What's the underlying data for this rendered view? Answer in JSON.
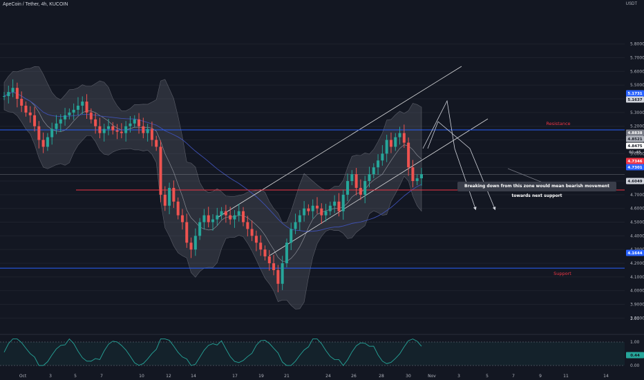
{
  "header": {
    "symbol_line": "ApeCoin / Tether, 4h, KUCOIN"
  },
  "currency": "USDT",
  "colors": {
    "background": "#131722",
    "candle_up": "#26a69a",
    "candle_down": "#ef5350",
    "level_blue": "#2962ff",
    "level_red": "#f23645",
    "bands_fill": "#787b86",
    "channel_line": "#ffffff",
    "ma_line": "#3f51b5",
    "rsi_line": "#26a69a"
  },
  "chart_data": {
    "type": "candlestick",
    "symbol": "ApeCoin / Tether",
    "timeframe": "4h",
    "exchange": "KUCOIN",
    "price_axis_ticks": [
      "5.8000",
      "5.7000",
      "5.6000",
      "5.5000",
      "5.4000",
      "5.3000",
      "5.2000",
      "5.1000",
      "5.0000",
      "4.9000",
      "4.8000",
      "4.7000",
      "4.6000",
      "4.5000",
      "4.4000",
      "4.3000",
      "4.2000",
      "4.1000",
      "4.0000",
      "3.9000",
      "3.8000"
    ],
    "oscillator_ticks": [
      "2.00",
      "1.00",
      "0.00"
    ],
    "x_ticks": [
      "Oct",
      "3",
      "5",
      "7",
      "10",
      "12",
      "14",
      "17",
      "19",
      "21",
      "24",
      "26",
      "28",
      "30",
      "Nov",
      "3",
      "5",
      "7",
      "9",
      "11",
      "14"
    ],
    "levels": [
      {
        "label": "Resistance",
        "price": 5.1731,
        "badge": "5.1731",
        "color": "#2962ff"
      },
      {
        "label": "Support",
        "price": 4.1644,
        "badge": "4.1644",
        "color": "#2962ff"
      },
      {
        "label": "",
        "price": 4.7346,
        "badge": "4.7346",
        "color": "#f23645"
      },
      {
        "label": "",
        "price": 4.7301,
        "badge": "4.7301",
        "color": "#2962ff"
      }
    ],
    "price_badges": [
      "5.1637",
      "4.8838",
      "4.8521",
      "4.8475",
      "4.6049"
    ],
    "countdown": "01:45",
    "current_price": 4.8475,
    "rsi_value": "0.44",
    "annotation": "Breaking down from this zone would mean bearish movement towards next support",
    "price_path": [
      5.42,
      5.45,
      5.48,
      5.4,
      5.35,
      5.3,
      5.28,
      5.2,
      5.1,
      5.05,
      5.12,
      5.18,
      5.22,
      5.25,
      5.28,
      5.3,
      5.32,
      5.35,
      5.38,
      5.3,
      5.25,
      5.2,
      5.15,
      5.18,
      5.2,
      5.17,
      5.16,
      5.15,
      5.2,
      5.22,
      5.25,
      5.2,
      5.15,
      5.18,
      5.1,
      5.05,
      4.7,
      4.62,
      4.75,
      4.65,
      4.55,
      4.5,
      4.35,
      4.3,
      4.4,
      4.5,
      4.55,
      4.5,
      4.52,
      4.55,
      4.58,
      4.55,
      4.52,
      4.55,
      4.58,
      4.5,
      4.45,
      4.4,
      4.35,
      4.3,
      4.25,
      4.2,
      4.15,
      4.05,
      4.2,
      4.35,
      4.45,
      4.5,
      4.55,
      4.6,
      4.58,
      4.62,
      4.6,
      4.55,
      4.58,
      4.62,
      4.65,
      4.58,
      4.7,
      4.8,
      4.85,
      4.75,
      4.7,
      4.8,
      4.85,
      4.9,
      4.95,
      5.0,
      5.1,
      5.05,
      5.12,
      5.15,
      5.08,
      4.9,
      4.8,
      4.82,
      4.85
    ]
  }
}
